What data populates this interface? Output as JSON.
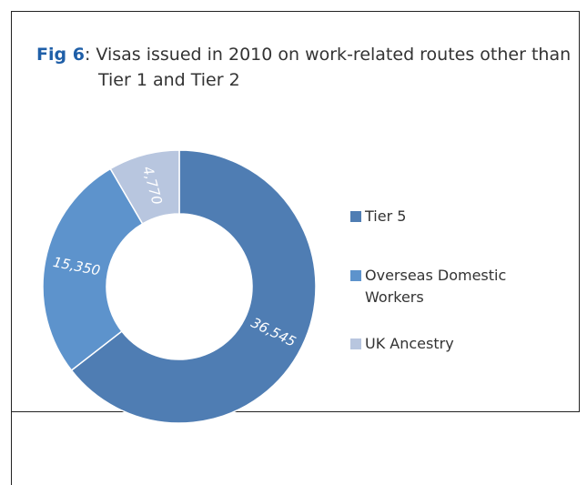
{
  "chart_data": {
    "type": "donut",
    "figure_label": "Fig 6",
    "title": ": Visas issued in 2010 on work-related routes other than Tier 1 and Tier 2",
    "categories": [
      "Tier 5",
      "Overseas Domestic Workers",
      "UK Ancestry"
    ],
    "values": [
      36545,
      15350,
      4770
    ],
    "value_labels": [
      "36,545",
      "15,350",
      "4,770"
    ],
    "colors": [
      "#4f7db3",
      "#5d93cc",
      "#b8c6df"
    ]
  }
}
